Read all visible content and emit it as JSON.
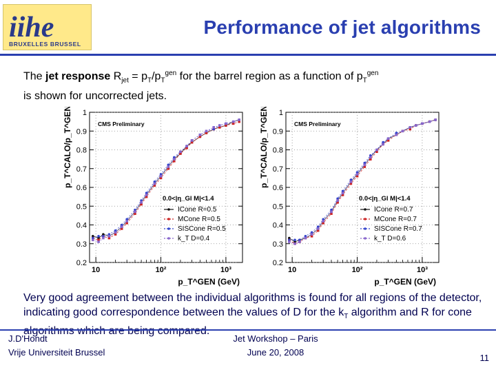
{
  "header": {
    "logo_text": "iihe",
    "logo_subtext": "BRUXELLES BRUSSEL",
    "title": "Performance of jet algorithms"
  },
  "intro": {
    "part1": "The ",
    "bold": "jet response",
    "part2": " R",
    "sub_jet": "jet",
    "part3": " = p",
    "sub_T1": "T",
    "part4": "/p",
    "sub_T2": "T",
    "sup_gen1": "gen",
    "part5": " for the barrel region as a function of p",
    "sub_T3": "T",
    "sup_gen2": "gen",
    "line2": "is shown for uncorrected jets."
  },
  "summary": {
    "part1": "Very good agreement between the individual algorithms is found for all regions of the detector, indicating good correspondence between the values of D for the k",
    "sub_T": "T",
    "part2": " algorithm and R for cone algorithms which are being compared."
  },
  "footer": {
    "author": "J.D'Hondt",
    "institute": "Vrije Universiteit Brussel",
    "event": "Jet Workshop – Paris",
    "date": "June 20, 2008",
    "page": "11"
  },
  "chart_data": [
    {
      "type": "scatter",
      "annotation": "CMS Preliminary",
      "region_label": "0.0<|η_Gl M|<1.4",
      "ylabel": "p_T^CALO/p_T^GEN",
      "xlabel": "p_T^GEN (GeV)",
      "xscale": "log",
      "xlim": [
        8,
        1800
      ],
      "ylim": [
        0.2,
        1.0
      ],
      "yticks": [
        0.2,
        0.3,
        0.4,
        0.5,
        0.6,
        0.7,
        0.8,
        0.9,
        1
      ],
      "ytick_labels": [
        "0.2",
        "0.3",
        "0.4",
        "0.5",
        "0.6",
        "0.7",
        "0.8",
        "0.9",
        "1"
      ],
      "xtick_labels": [
        "10",
        "10²",
        "10³"
      ],
      "legend_position": "bottom-right",
      "series": [
        {
          "name": "ICone R=0.5",
          "color": "#111111",
          "x": [
            9,
            11,
            13,
            16,
            20,
            25,
            30,
            40,
            50,
            60,
            80,
            100,
            130,
            160,
            200,
            250,
            300,
            400,
            500,
            650,
            800,
            1000,
            1300,
            1600
          ],
          "y": [
            0.34,
            0.33,
            0.35,
            0.34,
            0.36,
            0.39,
            0.42,
            0.47,
            0.52,
            0.56,
            0.62,
            0.66,
            0.71,
            0.75,
            0.78,
            0.82,
            0.84,
            0.87,
            0.89,
            0.91,
            0.92,
            0.93,
            0.95,
            0.96
          ]
        },
        {
          "name": "MCone R=0.5",
          "color": "#cc2222",
          "x": [
            9,
            11,
            13,
            16,
            20,
            25,
            30,
            40,
            50,
            60,
            80,
            100,
            130,
            160,
            200,
            250,
            300,
            400,
            500,
            650,
            800,
            1000,
            1300,
            1600
          ],
          "y": [
            0.33,
            0.32,
            0.34,
            0.33,
            0.35,
            0.38,
            0.41,
            0.46,
            0.51,
            0.55,
            0.61,
            0.65,
            0.7,
            0.74,
            0.78,
            0.81,
            0.84,
            0.87,
            0.89,
            0.91,
            0.92,
            0.93,
            0.94,
            0.95
          ]
        },
        {
          "name": "SISCone R=0.5",
          "color": "#3344cc",
          "x": [
            9,
            11,
            13,
            16,
            20,
            25,
            30,
            40,
            50,
            60,
            80,
            100,
            130,
            160,
            200,
            250,
            300,
            400,
            500,
            650,
            800,
            1000,
            1300,
            1600
          ],
          "y": [
            0.33,
            0.34,
            0.34,
            0.35,
            0.37,
            0.4,
            0.43,
            0.48,
            0.53,
            0.57,
            0.63,
            0.67,
            0.72,
            0.76,
            0.79,
            0.82,
            0.85,
            0.88,
            0.9,
            0.91,
            0.93,
            0.94,
            0.95,
            0.96
          ]
        },
        {
          "name": "k_T D=0.4",
          "color": "#8866cc",
          "x": [
            9,
            11,
            13,
            16,
            20,
            25,
            30,
            40,
            50,
            60,
            80,
            100,
            130,
            160,
            200,
            250,
            300,
            400,
            500,
            650,
            800,
            1000,
            1300,
            1600
          ],
          "y": [
            0.32,
            0.31,
            0.33,
            0.34,
            0.36,
            0.39,
            0.42,
            0.47,
            0.52,
            0.56,
            0.62,
            0.66,
            0.71,
            0.75,
            0.79,
            0.82,
            0.85,
            0.88,
            0.9,
            0.92,
            0.93,
            0.94,
            0.95,
            0.96
          ]
        }
      ]
    },
    {
      "type": "scatter",
      "annotation": "CMS Preliminary",
      "region_label": "0.0<|η_Gl M|<1.4",
      "ylabel": "p_T^CALO/p_T^GEN",
      "xlabel": "p_T^GEN (GeV)",
      "xscale": "log",
      "xlim": [
        8,
        1800
      ],
      "ylim": [
        0.2,
        1.0
      ],
      "yticks": [
        0.2,
        0.3,
        0.4,
        0.5,
        0.6,
        0.7,
        0.8,
        0.9,
        1
      ],
      "ytick_labels": [
        "0.2",
        "0.3",
        "0.4",
        "0.5",
        "0.6",
        "0.7",
        "0.8",
        "0.9",
        "1"
      ],
      "xtick_labels": [
        "10",
        "10²",
        "10³"
      ],
      "legend_position": "bottom-right",
      "series": [
        {
          "name": "ICone R=0.7",
          "color": "#111111",
          "x": [
            9,
            11,
            13,
            16,
            20,
            25,
            30,
            40,
            50,
            60,
            80,
            100,
            130,
            160,
            200,
            250,
            300,
            400,
            500,
            650,
            800,
            1000,
            1300,
            1600
          ],
          "y": [
            0.33,
            0.31,
            0.32,
            0.33,
            0.35,
            0.38,
            0.42,
            0.47,
            0.53,
            0.57,
            0.63,
            0.67,
            0.72,
            0.76,
            0.8,
            0.83,
            0.86,
            0.88,
            0.9,
            0.92,
            0.93,
            0.94,
            0.95,
            0.96
          ]
        },
        {
          "name": "MCone R=0.7",
          "color": "#cc2222",
          "x": [
            9,
            11,
            13,
            16,
            20,
            25,
            30,
            40,
            50,
            60,
            80,
            100,
            130,
            160,
            200,
            250,
            300,
            400,
            500,
            650,
            800,
            1000,
            1300,
            1600
          ],
          "y": [
            0.32,
            0.3,
            0.31,
            0.33,
            0.34,
            0.37,
            0.41,
            0.46,
            0.52,
            0.56,
            0.62,
            0.66,
            0.71,
            0.75,
            0.79,
            0.83,
            0.85,
            0.88,
            0.9,
            0.91,
            0.93,
            0.94,
            0.95,
            0.96
          ]
        },
        {
          "name": "SISCone R=0.7",
          "color": "#3344cc",
          "x": [
            9,
            11,
            13,
            16,
            20,
            25,
            30,
            40,
            50,
            60,
            80,
            100,
            130,
            160,
            200,
            250,
            300,
            400,
            500,
            650,
            800,
            1000,
            1300,
            1600
          ],
          "y": [
            0.32,
            0.32,
            0.32,
            0.34,
            0.36,
            0.39,
            0.43,
            0.48,
            0.54,
            0.58,
            0.64,
            0.68,
            0.73,
            0.77,
            0.8,
            0.84,
            0.86,
            0.89,
            0.9,
            0.92,
            0.93,
            0.94,
            0.95,
            0.96
          ]
        },
        {
          "name": "k_T D=0.6",
          "color": "#8866cc",
          "x": [
            9,
            11,
            13,
            16,
            20,
            25,
            30,
            40,
            50,
            60,
            80,
            100,
            130,
            160,
            200,
            250,
            300,
            400,
            500,
            650,
            800,
            1000,
            1300,
            1600
          ],
          "y": [
            0.31,
            0.3,
            0.31,
            0.33,
            0.35,
            0.38,
            0.42,
            0.47,
            0.53,
            0.57,
            0.63,
            0.67,
            0.72,
            0.76,
            0.8,
            0.83,
            0.86,
            0.88,
            0.9,
            0.92,
            0.93,
            0.94,
            0.95,
            0.96
          ]
        }
      ]
    }
  ]
}
